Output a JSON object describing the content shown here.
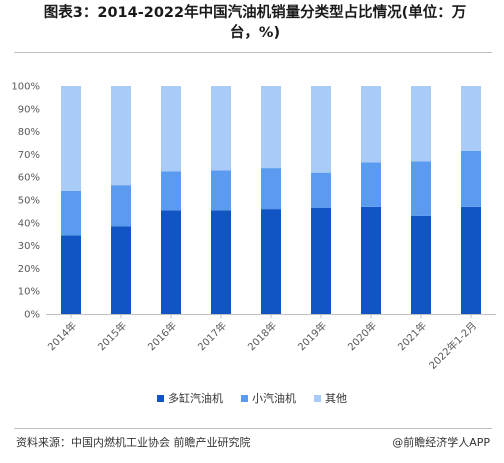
{
  "title": {
    "line1": "图表3：2014-2022年中国汽油机销量分类型占比情况(单位：万",
    "line2": "台，%)"
  },
  "chart_data": {
    "type": "bar",
    "stacked": true,
    "categories": [
      "2014年",
      "2015年",
      "2016年",
      "2017年",
      "2018年",
      "2019年",
      "2020年",
      "2021年",
      "2022年1-2月"
    ],
    "series": [
      {
        "name": "多缸汽油机",
        "color": "#1155c4",
        "values": [
          34.5,
          38.5,
          45.5,
          45.5,
          46,
          46.5,
          47,
          43,
          47
        ]
      },
      {
        "name": "小汽油机",
        "color": "#5b9bef",
        "values": [
          19.5,
          18,
          17,
          17.5,
          18,
          15.5,
          19.5,
          24,
          24.5
        ]
      },
      {
        "name": "其他",
        "color": "#a9cbf7",
        "values": [
          46,
          43.5,
          37.5,
          37,
          36,
          38,
          33.5,
          33,
          28.5
        ]
      }
    ],
    "yticks": [
      "0%",
      "10%",
      "20%",
      "30%",
      "40%",
      "50%",
      "60%",
      "70%",
      "80%",
      "90%",
      "100%"
    ],
    "ylim": [
      0,
      100
    ],
    "legend_position": "bottom",
    "grid": false
  },
  "footer": {
    "source": "资料来源：中国内燃机工业协会 前瞻产业研究院",
    "brand": "@前瞻经济学人APP"
  }
}
